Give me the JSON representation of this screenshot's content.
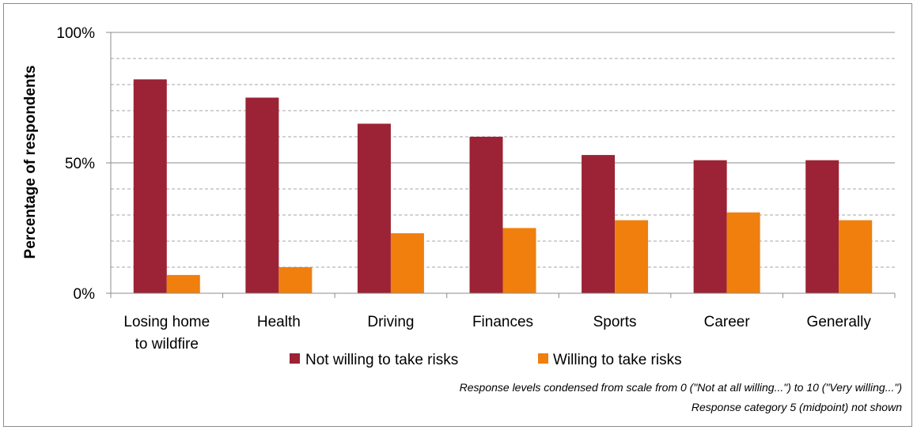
{
  "chart_data": {
    "type": "bar",
    "ylabel": "Percentage of respondents",
    "xlabel": "",
    "ylim": [
      0,
      100
    ],
    "yticks": [
      {
        "value": 0,
        "label": "0%"
      },
      {
        "value": 50,
        "label": "50%"
      },
      {
        "value": 100,
        "label": "100%"
      }
    ],
    "minor_gridlines": [
      10,
      20,
      30,
      40,
      60,
      70,
      80,
      90
    ],
    "categories": [
      [
        "Losing home",
        "to wildfire"
      ],
      [
        "Health"
      ],
      [
        "Driving"
      ],
      [
        "Finances"
      ],
      [
        "Sports"
      ],
      [
        "Career"
      ],
      [
        "Generally"
      ]
    ],
    "series": [
      {
        "name": "Not willing to take risks",
        "color": "#9b2335",
        "values": [
          82,
          75,
          65,
          60,
          53,
          51,
          51
        ]
      },
      {
        "name": "Willing to take risks",
        "color": "#f07f0e",
        "values": [
          7,
          10,
          23,
          25,
          28,
          31,
          28
        ]
      }
    ],
    "legend_position": "bottom-center",
    "grid": true,
    "notes": [
      "Response levels condensed from scale from 0 (\"Not at all willing...\") to 10 (\"Very willing...\")",
      "Response category 5 (midpoint) not shown"
    ]
  }
}
